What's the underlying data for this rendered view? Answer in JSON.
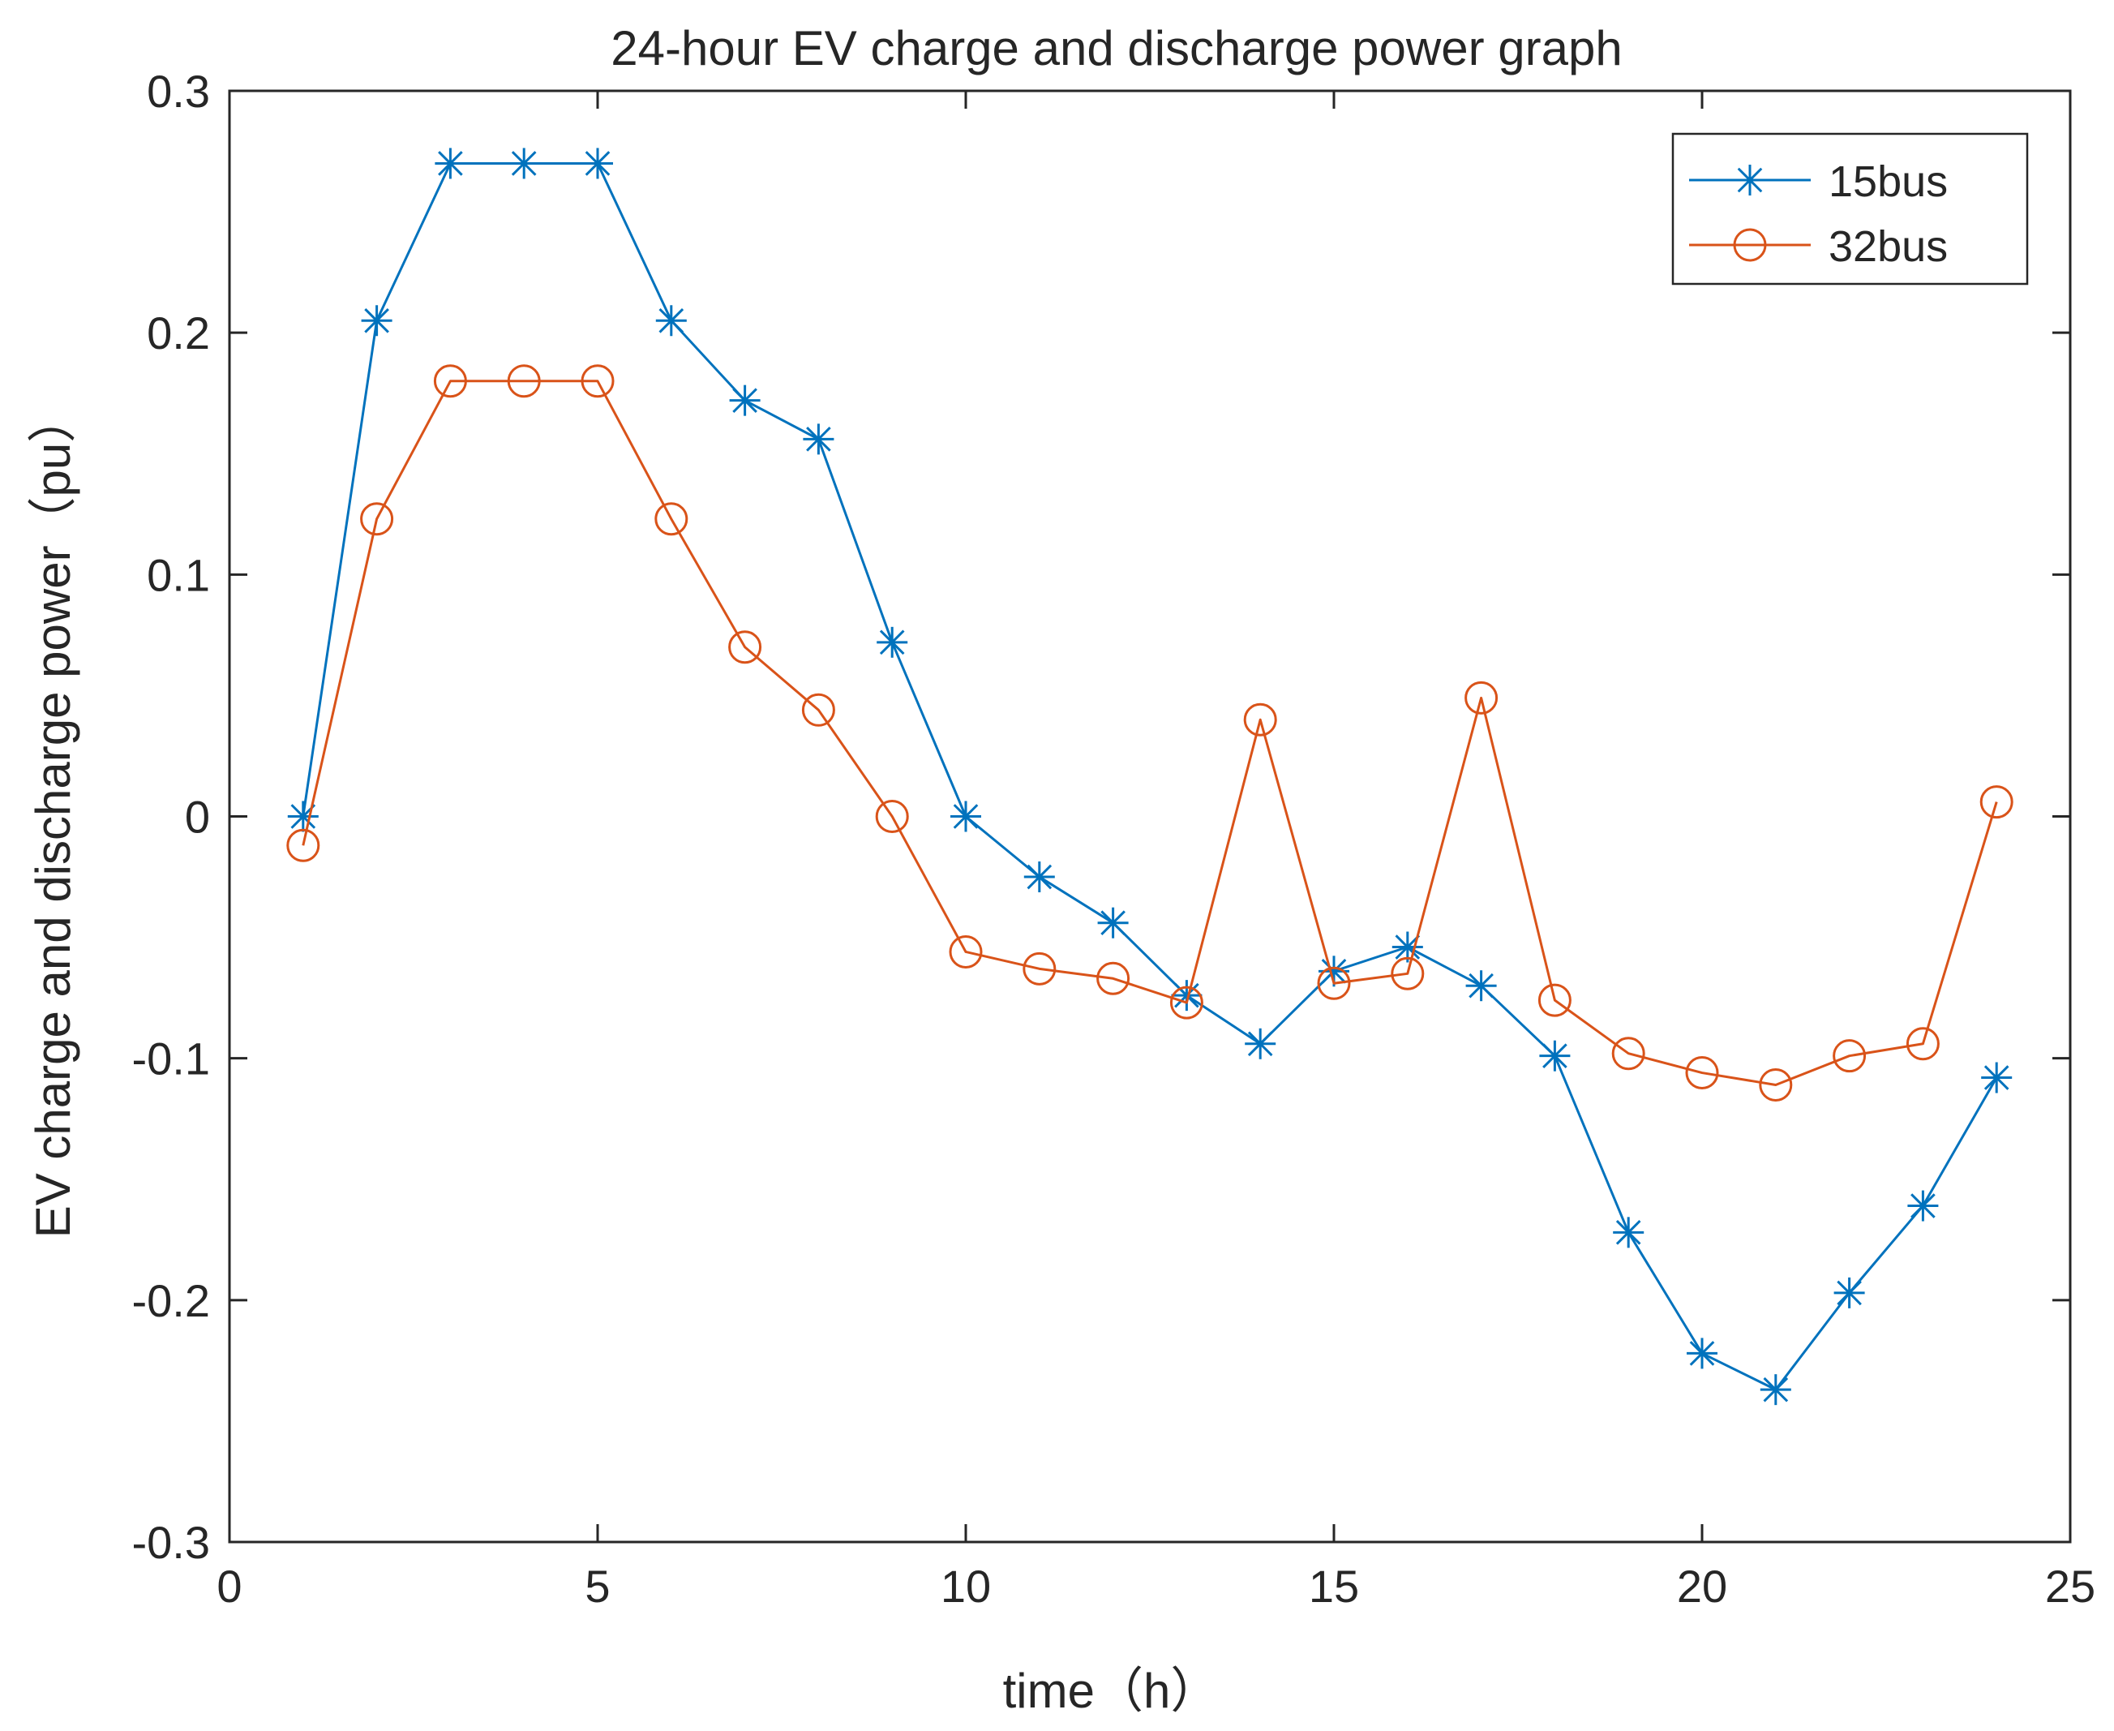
{
  "chart_data": {
    "type": "line",
    "title": "24-hour EV charge and discharge power graph",
    "xlabel": "time（h）",
    "ylabel": "EV charge and discharge power（pu）",
    "xlim": [
      0,
      25
    ],
    "ylim": [
      -0.3,
      0.3
    ],
    "xticks": [
      0,
      5,
      10,
      15,
      20,
      25
    ],
    "xtick_labels": [
      "0",
      "5",
      "10",
      "15",
      "20",
      "25"
    ],
    "yticks": [
      -0.3,
      -0.2,
      -0.1,
      0,
      0.1,
      0.2,
      0.3
    ],
    "ytick_labels": [
      "-0.3",
      "-0.2",
      "-0.1",
      "0",
      "0.1",
      "0.2",
      "0.3"
    ],
    "grid": false,
    "legend_position": "top-right",
    "x": [
      1,
      2,
      3,
      4,
      5,
      6,
      7,
      8,
      9,
      10,
      11,
      12,
      13,
      14,
      15,
      16,
      17,
      18,
      19,
      20,
      21,
      22,
      23,
      24
    ],
    "series": [
      {
        "name": "15bus",
        "color": "#0072BD",
        "marker": "asterisk",
        "values": [
          0,
          0.205,
          0.27,
          0.27,
          0.27,
          0.205,
          0.172,
          0.156,
          0.072,
          0,
          -0.025,
          -0.044,
          -0.074,
          -0.094,
          -0.064,
          -0.054,
          -0.07,
          -0.099,
          -0.172,
          -0.222,
          -0.237,
          -0.197,
          -0.161,
          -0.108
        ]
      },
      {
        "name": "32bus",
        "color": "#D95319",
        "marker": "circle",
        "values": [
          -0.012,
          0.123,
          0.18,
          0.18,
          0.18,
          0.123,
          0.07,
          0.044,
          0,
          -0.056,
          -0.063,
          -0.067,
          -0.077,
          0.04,
          -0.069,
          -0.065,
          0.049,
          -0.076,
          -0.098,
          -0.106,
          -0.111,
          -0.099,
          -0.094,
          0.006
        ]
      }
    ]
  }
}
